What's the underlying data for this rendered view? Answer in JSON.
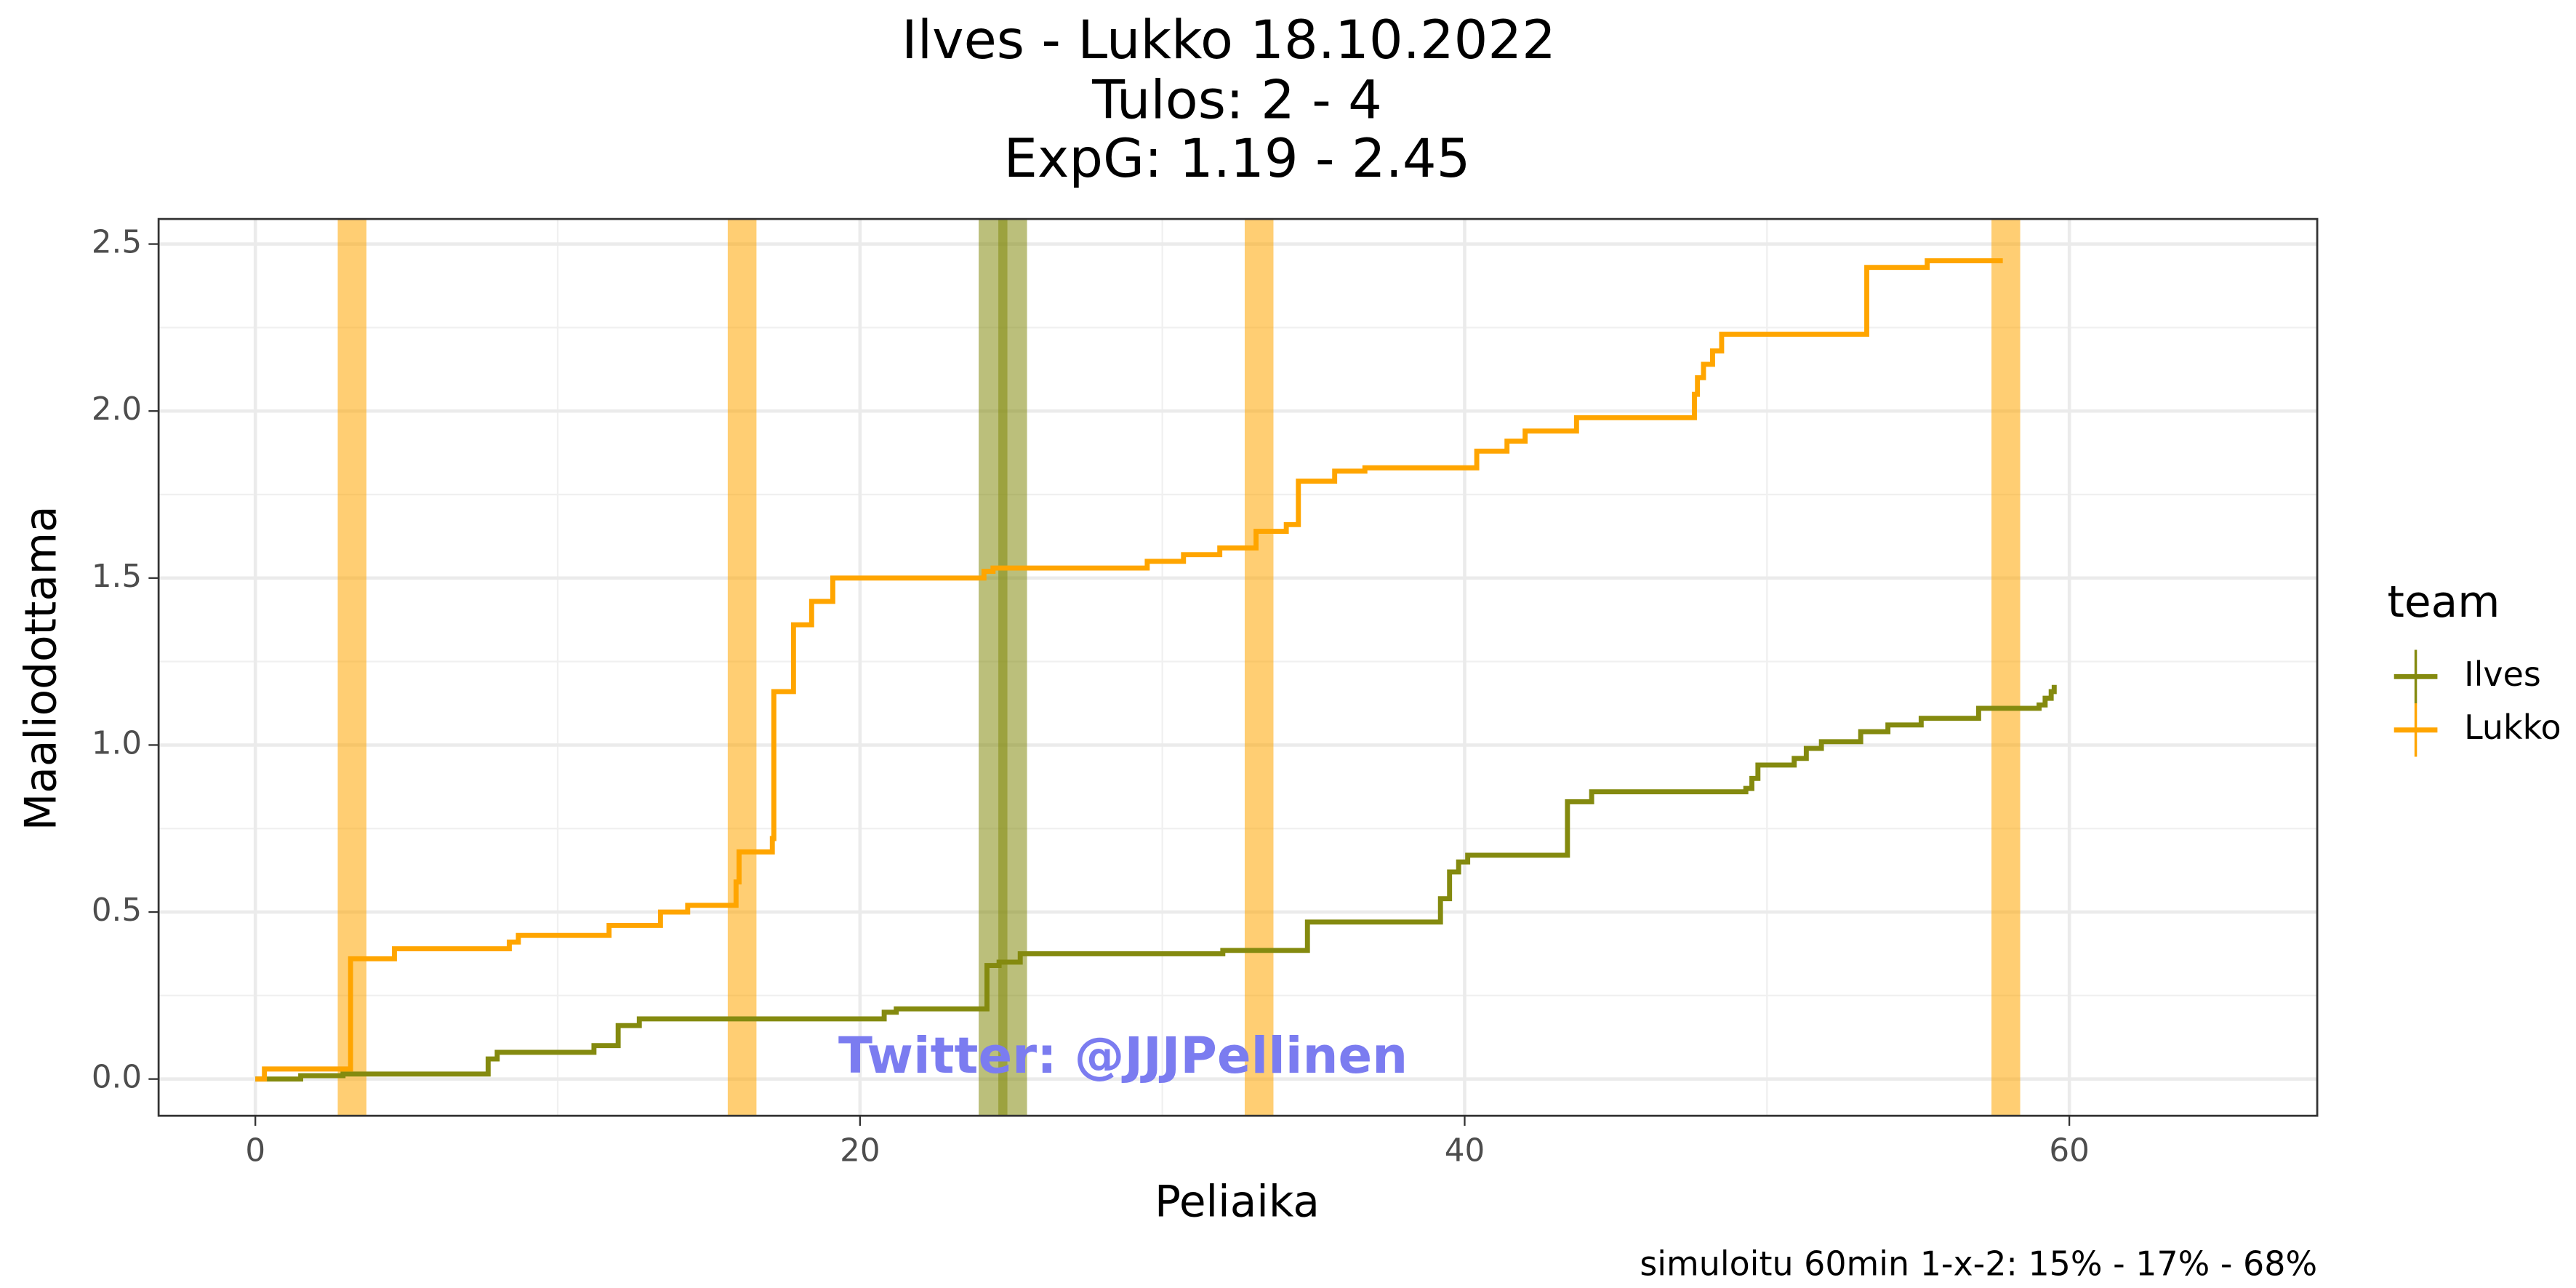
{
  "chart_data": {
    "type": "step",
    "title": "Ilves - Lukko 18.10.2022",
    "subtitle": [
      "Tulos: 2 - 4",
      "ExpG: 1.19 - 2.45"
    ],
    "x_label": "Peliaika",
    "y_label": "Maaliodottama",
    "legend_title": "team",
    "annotation": "Twitter: @JJJPellinen",
    "caption": "simuloitu 60min 1-x-2:  15% - 17% - 68%",
    "xlim": [
      -3.2,
      68.2
    ],
    "ylim": [
      -0.11,
      2.575
    ],
    "xticks": [
      0,
      20,
      40,
      60
    ],
    "yticks": [
      {
        "value": 0,
        "label": "0.0"
      },
      {
        "value": 0.5,
        "label": "0.5"
      },
      {
        "value": 1,
        "label": "1.0"
      },
      {
        "value": 1.5,
        "label": "1.5"
      },
      {
        "value": 2,
        "label": "2.0"
      },
      {
        "value": 2.5,
        "label": "2.5"
      }
    ],
    "grid": true,
    "series": [
      {
        "name": "Ilves",
        "color": "#848a0f",
        "x": [
          0,
          1.5,
          2.9,
          7.7,
          8.0,
          11.2,
          12.0,
          12.7,
          20.8,
          21.2,
          24.2,
          24.6,
          25.3,
          32.0,
          34.8,
          39.2,
          39.5,
          39.8,
          40.1,
          43.4,
          44.2,
          49.3,
          49.5,
          49.7,
          50.9,
          51.3,
          51.8,
          53.1,
          54.0,
          55.1,
          57.0,
          59.0,
          59.2,
          59.4,
          59.5
        ],
        "values": [
          0,
          0.01,
          0.015,
          0.06,
          0.08,
          0.1,
          0.16,
          0.18,
          0.2,
          0.21,
          0.34,
          0.35,
          0.375,
          0.385,
          0.47,
          0.54,
          0.62,
          0.65,
          0.67,
          0.83,
          0.86,
          0.87,
          0.9,
          0.94,
          0.96,
          0.99,
          1.01,
          1.04,
          1.06,
          1.08,
          1.11,
          1.12,
          1.14,
          1.16,
          1.18
        ],
        "goals": [
          24.4,
          25.05
        ]
      },
      {
        "name": "Lukko",
        "color": "#ffa500",
        "x": [
          0,
          0.3,
          3.15,
          4.6,
          8.4,
          8.7,
          11.7,
          13.4,
          14.3,
          15.9,
          16.0,
          17.1,
          17.15,
          17.8,
          18.4,
          19.1,
          24.1,
          24.4,
          29.5,
          30.7,
          31.9,
          33.1,
          34.1,
          34.5,
          35.7,
          36.7,
          40.4,
          41.4,
          42.0,
          43.7,
          47.6,
          47.7,
          47.9,
          48.2,
          48.5,
          53.3,
          55.3,
          57.8
        ],
        "values": [
          0,
          0.03,
          0.36,
          0.39,
          0.41,
          0.43,
          0.46,
          0.5,
          0.52,
          0.59,
          0.68,
          0.72,
          1.16,
          1.36,
          1.43,
          1.5,
          1.52,
          1.53,
          1.55,
          1.57,
          1.59,
          1.64,
          1.66,
          1.79,
          1.82,
          1.83,
          1.88,
          1.91,
          1.94,
          1.98,
          2.05,
          2.1,
          2.14,
          2.18,
          2.23,
          2.43,
          2.45,
          2.45
        ],
        "goals": [
          3.2,
          16.1,
          33.2,
          57.9
        ]
      }
    ]
  }
}
